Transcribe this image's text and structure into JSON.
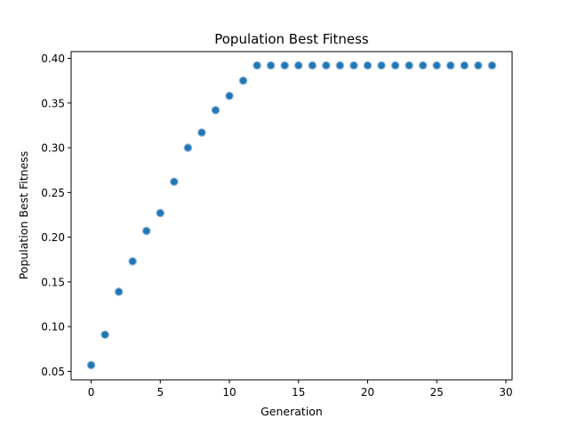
{
  "chart_data": {
    "type": "scatter",
    "title": "Population Best Fitness",
    "xlabel": "Generation",
    "ylabel": "Population Best Fitness",
    "xlim": [
      -1.45,
      30.45
    ],
    "ylim": [
      0.0405,
      0.4075
    ],
    "xticks": [
      0,
      5,
      10,
      15,
      20,
      25,
      30
    ],
    "xtick_labels": [
      "0",
      "5",
      "10",
      "15",
      "20",
      "25",
      "30"
    ],
    "yticks": [
      0.05,
      0.1,
      0.15,
      0.2,
      0.25,
      0.3,
      0.35,
      0.4
    ],
    "ytick_labels": [
      "0.05",
      "0.10",
      "0.15",
      "0.20",
      "0.25",
      "0.30",
      "0.35",
      "0.40"
    ],
    "grid": false,
    "marker_color": "#1f77b4",
    "marker_edge_color": "#8fb3d8",
    "x": [
      0,
      1,
      2,
      3,
      4,
      5,
      6,
      7,
      8,
      9,
      10,
      11,
      12,
      13,
      14,
      15,
      16,
      17,
      18,
      19,
      20,
      21,
      22,
      23,
      24,
      25,
      26,
      27,
      28,
      29
    ],
    "y": [
      0.057,
      0.091,
      0.139,
      0.173,
      0.207,
      0.227,
      0.262,
      0.3,
      0.317,
      0.342,
      0.358,
      0.375,
      0.392,
      0.392,
      0.392,
      0.392,
      0.392,
      0.392,
      0.392,
      0.392,
      0.392,
      0.392,
      0.392,
      0.392,
      0.392,
      0.392,
      0.392,
      0.392,
      0.392,
      0.392
    ]
  }
}
